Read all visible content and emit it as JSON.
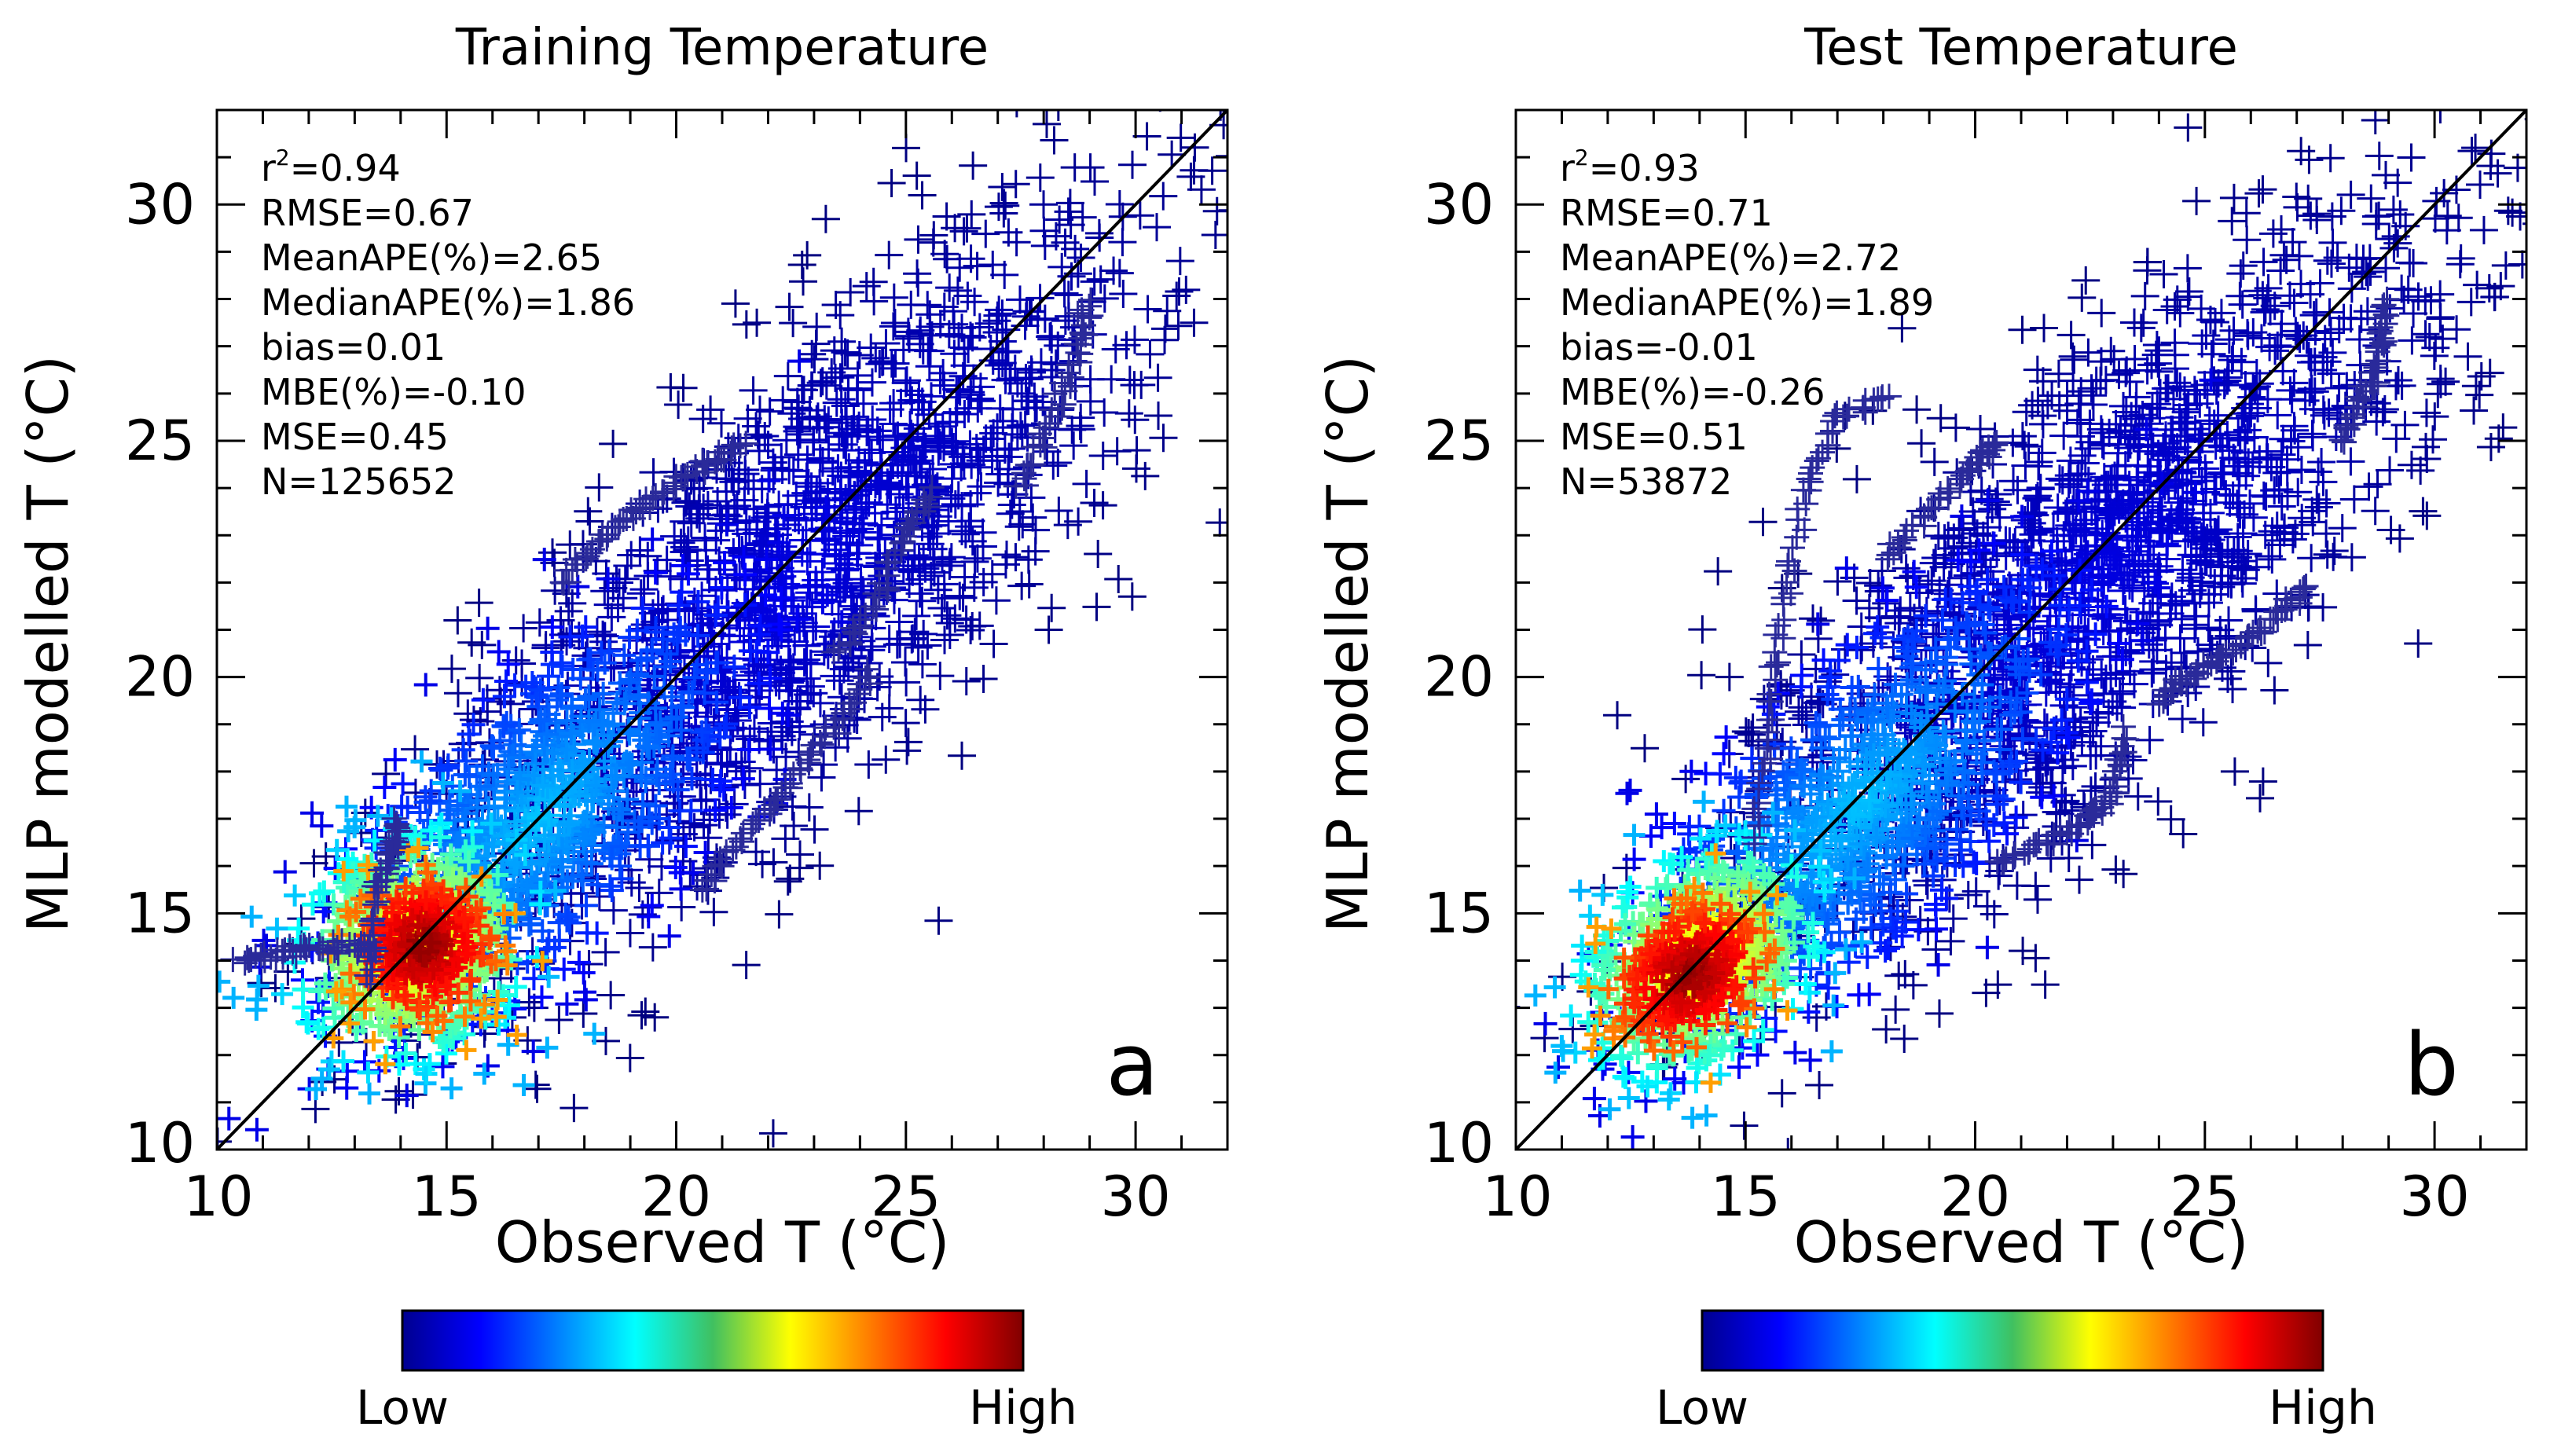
{
  "chart_data": [
    {
      "type": "scatter",
      "panel_letter": "a",
      "title": "Training Temperature",
      "xlabel": "Observed T (°C)",
      "ylabel": "MLP modelled T (°C)",
      "xlim": [
        10,
        32
      ],
      "ylim": [
        10,
        32
      ],
      "xticks": [
        10,
        15,
        20,
        25,
        30
      ],
      "yticks": [
        10,
        15,
        20,
        25,
        30
      ],
      "xtick_labels": [
        "10",
        "15",
        "20",
        "25",
        "30"
      ],
      "ytick_labels": [
        "10",
        "15",
        "20",
        "25",
        "30"
      ],
      "reference_line": "1:1",
      "marker": "+",
      "color_scale": "point density (jet)",
      "colorbar": {
        "low_label": "Low",
        "high_label": "High"
      },
      "stats": [
        {
          "name": "r2",
          "label": "r",
          "sup": "2",
          "text": "=0.94"
        },
        {
          "name": "rmse",
          "label": "RMSE",
          "text": "=0.67"
        },
        {
          "name": "mean-ape",
          "label": "MeanAPE(%)",
          "text": "=2.65"
        },
        {
          "name": "median-ape",
          "label": "MedianAPE(%)",
          "text": "=1.86"
        },
        {
          "name": "bias",
          "label": "bias",
          "text": "=0.01"
        },
        {
          "name": "mbe",
          "label": "MBE(%)",
          "text": "=-0.10"
        },
        {
          "name": "mse",
          "label": "MSE",
          "text": "=0.45"
        },
        {
          "name": "n",
          "label": "N",
          "text": "=125652"
        }
      ],
      "density_clusters": [
        {
          "x": 14.5,
          "y": 14.3,
          "sx": 0.8,
          "sy": 0.75,
          "rot": 30,
          "level": "high"
        },
        {
          "x": 14.3,
          "y": 14.3,
          "sx": 1.3,
          "sy": 1.1,
          "rot": 35,
          "level": "mid"
        },
        {
          "x": 17.0,
          "y": 17.0,
          "sx": 3.0,
          "sy": 1.3,
          "rot": 45,
          "level": "low"
        },
        {
          "x": 22.5,
          "y": 22.0,
          "sx": 5.5,
          "sy": 1.9,
          "rot": 45,
          "level": "sparse"
        }
      ],
      "tails": [
        {
          "x": [
            10.5,
            11.5,
            12.5,
            13.5
          ],
          "y": [
            14.0,
            14.2,
            14.3,
            14.3
          ]
        },
        {
          "x": [
            20.5,
            21.5,
            22.5,
            23.5,
            24.3
          ],
          "y": [
            15.5,
            16.7,
            17.8,
            19.0,
            20.3
          ]
        },
        {
          "x": [
            23.5,
            24.3,
            25.0,
            25.6
          ],
          "y": [
            20.5,
            21.5,
            23.0,
            24.0
          ]
        },
        {
          "x": [
            17.5,
            18.5,
            19.5,
            20.5,
            21.5
          ],
          "y": [
            22.0,
            23.0,
            23.8,
            24.4,
            25.0
          ]
        },
        {
          "x": [
            13.3,
            13.5,
            13.8,
            14.0
          ],
          "y": [
            13.5,
            15.5,
            16.3,
            17.0
          ]
        },
        {
          "x": [
            27.5,
            28.2,
            28.8,
            29.0
          ],
          "y": [
            24.0,
            25.5,
            27.0,
            28.0
          ]
        }
      ]
    },
    {
      "type": "scatter",
      "panel_letter": "b",
      "title": "Test Temperature",
      "xlabel": "Observed T (°C)",
      "ylabel": "MLP modelled T (°C)",
      "xlim": [
        10,
        32
      ],
      "ylim": [
        10,
        32
      ],
      "xticks": [
        10,
        15,
        20,
        25,
        30
      ],
      "yticks": [
        10,
        15,
        20,
        25,
        30
      ],
      "xtick_labels": [
        "10",
        "15",
        "20",
        "25",
        "30"
      ],
      "ytick_labels": [
        "10",
        "15",
        "20",
        "25",
        "30"
      ],
      "reference_line": "1:1",
      "marker": "+",
      "color_scale": "point density (jet)",
      "colorbar": {
        "low_label": "Low",
        "high_label": "High"
      },
      "stats": [
        {
          "name": "r2",
          "label": "r",
          "sup": "2",
          "text": "=0.93"
        },
        {
          "name": "rmse",
          "label": "RMSE",
          "text": "=0.71"
        },
        {
          "name": "mean-ape",
          "label": "MeanAPE(%)",
          "text": "=2.72"
        },
        {
          "name": "median-ape",
          "label": "MedianAPE(%)",
          "text": "=1.89"
        },
        {
          "name": "bias",
          "label": "bias",
          "text": "=-0.01"
        },
        {
          "name": "mbe",
          "label": "MBE(%)",
          "text": "=-0.26"
        },
        {
          "name": "mse",
          "label": "MSE",
          "text": "=0.51"
        },
        {
          "name": "n",
          "label": "N",
          "text": "=53872"
        }
      ],
      "density_clusters": [
        {
          "x": 13.8,
          "y": 13.7,
          "sx": 0.9,
          "sy": 0.7,
          "rot": 35,
          "level": "high"
        },
        {
          "x": 14.0,
          "y": 14.0,
          "sx": 1.4,
          "sy": 1.0,
          "rot": 40,
          "level": "mid"
        },
        {
          "x": 17.5,
          "y": 17.3,
          "sx": 3.2,
          "sy": 1.3,
          "rot": 45,
          "level": "low"
        },
        {
          "x": 22.5,
          "y": 22.0,
          "sx": 5.5,
          "sy": 1.9,
          "rot": 45,
          "level": "sparse"
        }
      ],
      "tails": [
        {
          "x": [
            15.2,
            15.5,
            15.8,
            16.3,
            17.0,
            18.2
          ],
          "y": [
            16.5,
            19.0,
            21.5,
            24.0,
            25.5,
            26.0
          ]
        },
        {
          "x": [
            24.0,
            24.5,
            25.5,
            26.5,
            27.3
          ],
          "y": [
            19.5,
            19.9,
            20.5,
            21.2,
            22.0
          ]
        },
        {
          "x": [
            20.5,
            21.5,
            22.5,
            23.0,
            23.3
          ],
          "y": [
            16.0,
            16.5,
            17.0,
            17.5,
            19.0
          ]
        },
        {
          "x": [
            18.0,
            19.0,
            20.0,
            20.5
          ],
          "y": [
            22.5,
            23.5,
            24.5,
            25.0
          ]
        },
        {
          "x": [
            28.0,
            28.5,
            28.8,
            29.0
          ],
          "y": [
            25.0,
            26.0,
            27.0,
            28.0
          ]
        }
      ]
    }
  ]
}
